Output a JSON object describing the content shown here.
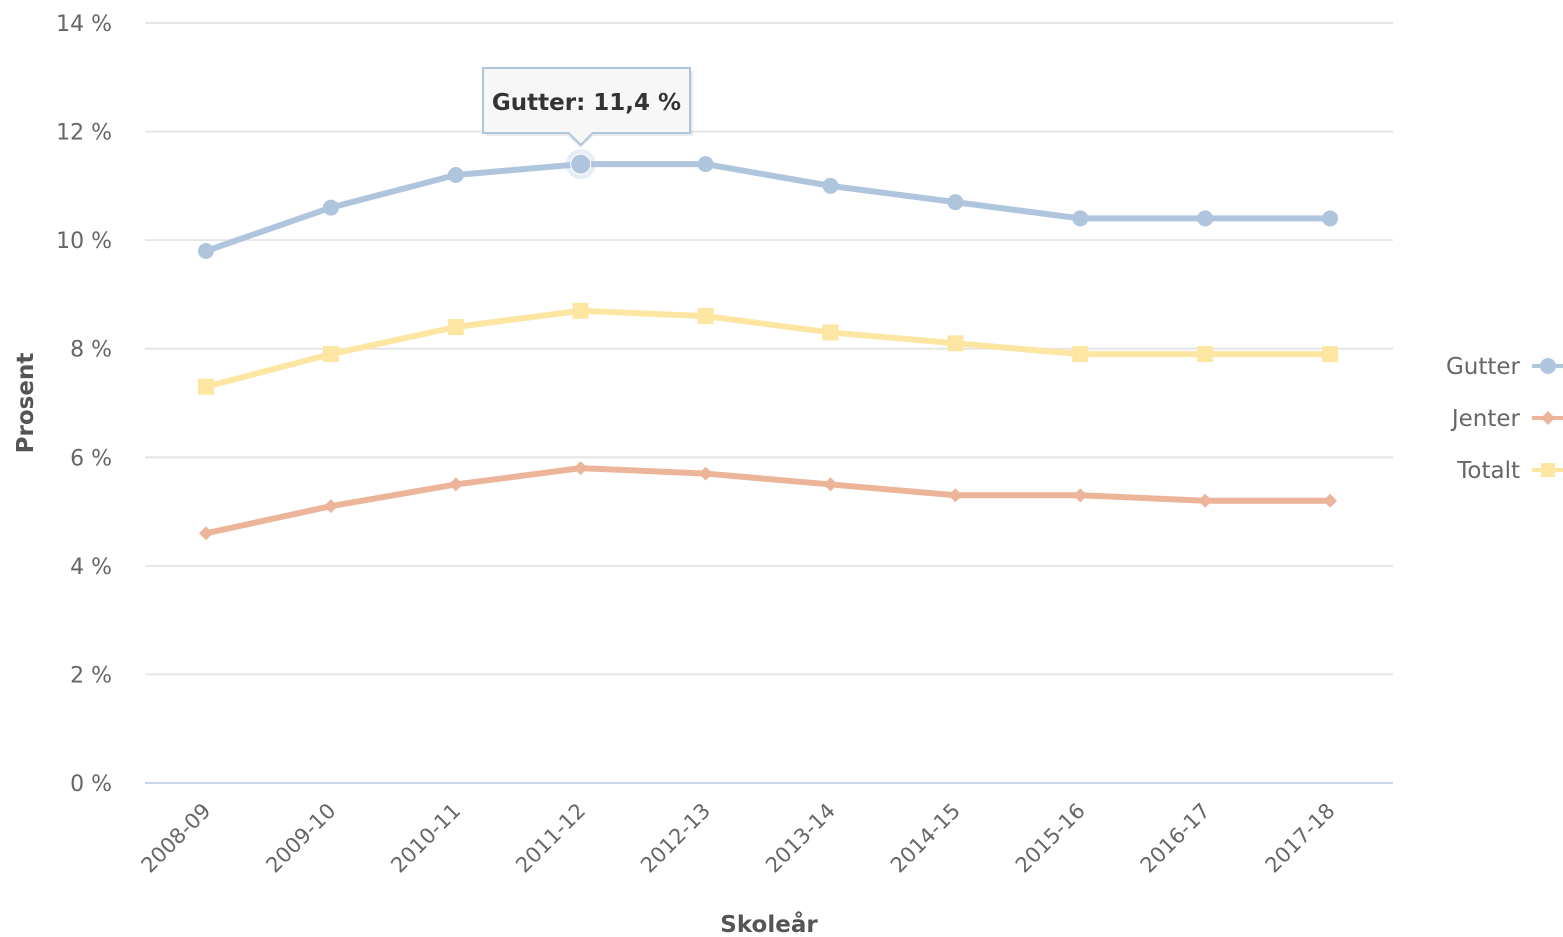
{
  "chart_data": {
    "type": "line",
    "title": "",
    "xlabel": "Skoleår",
    "ylabel": "Prosent",
    "categories": [
      "2008-09",
      "2009-10",
      "2010-11",
      "2011-12",
      "2012-13",
      "2013-14",
      "2014-15",
      "2015-16",
      "2016-17",
      "2017-18"
    ],
    "ylim": [
      0,
      14
    ],
    "yticks": [
      0,
      2,
      4,
      6,
      8,
      10,
      12,
      14
    ],
    "ytick_labels": [
      "0 %",
      "2 %",
      "4 %",
      "6 %",
      "8 %",
      "10 %",
      "12 %",
      "14 %"
    ],
    "grid": true,
    "legend_position": "right",
    "series": [
      {
        "name": "Gutter",
        "color": "#afc5de",
        "marker": "circle",
        "values": [
          9.8,
          10.6,
          11.2,
          11.4,
          11.4,
          11.0,
          10.7,
          10.4,
          10.4,
          10.4
        ]
      },
      {
        "name": "Jenter",
        "color": "#ecb498",
        "marker": "diamond",
        "values": [
          4.6,
          5.1,
          5.5,
          5.8,
          5.7,
          5.5,
          5.3,
          5.3,
          5.2,
          5.2
        ]
      },
      {
        "name": "Totalt",
        "color": "#fde5a2",
        "marker": "square",
        "values": [
          7.3,
          7.9,
          8.4,
          8.7,
          8.6,
          8.3,
          8.1,
          7.9,
          7.9,
          7.9
        ]
      }
    ],
    "tooltip": {
      "text": "Gutter: 11,4 %",
      "series": 0,
      "index": 3
    }
  }
}
